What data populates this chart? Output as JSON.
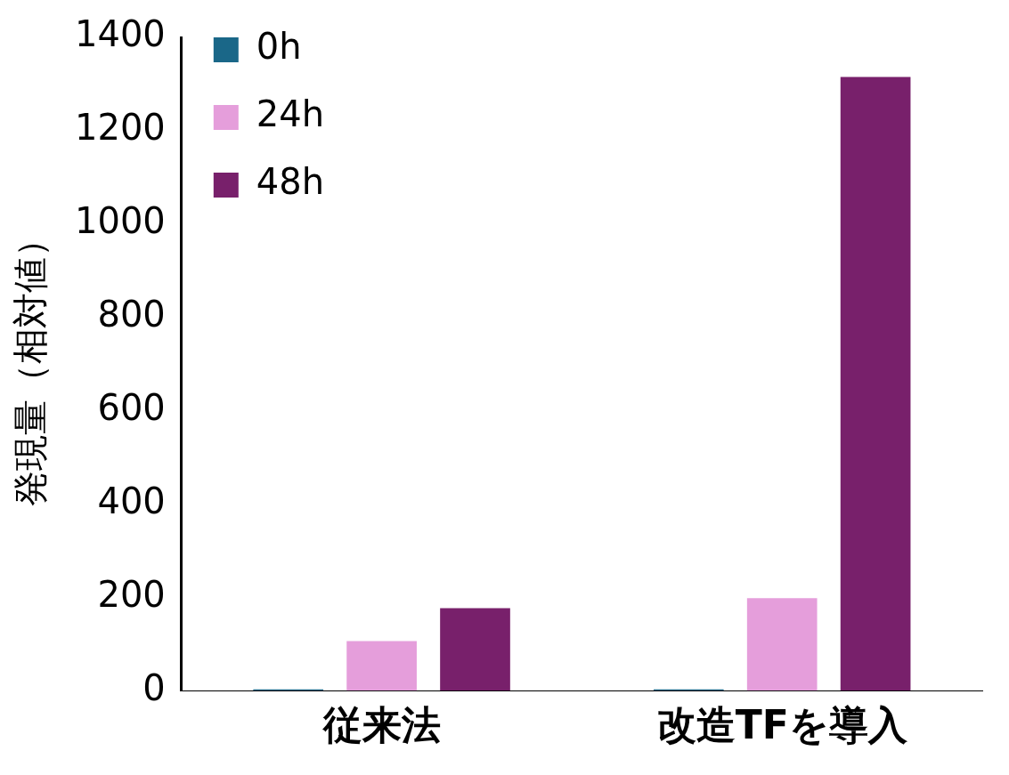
{
  "chart_data": {
    "type": "bar",
    "ylabel": "発現量（相対値）",
    "categories": [
      "従来法",
      "改造TFを導入"
    ],
    "series": [
      {
        "name": "0h",
        "color": "#1a6788",
        "values": [
          3,
          3
        ]
      },
      {
        "name": "24h",
        "color": "#e59edb",
        "values": [
          106,
          198
        ]
      },
      {
        "name": "48h",
        "color": "#78206b",
        "values": [
          177,
          1315
        ]
      }
    ],
    "ylim": [
      0,
      1400
    ],
    "yticks": [
      0,
      200,
      400,
      600,
      800,
      1000,
      1200,
      1400
    ],
    "grid": false,
    "legend": "top left"
  }
}
